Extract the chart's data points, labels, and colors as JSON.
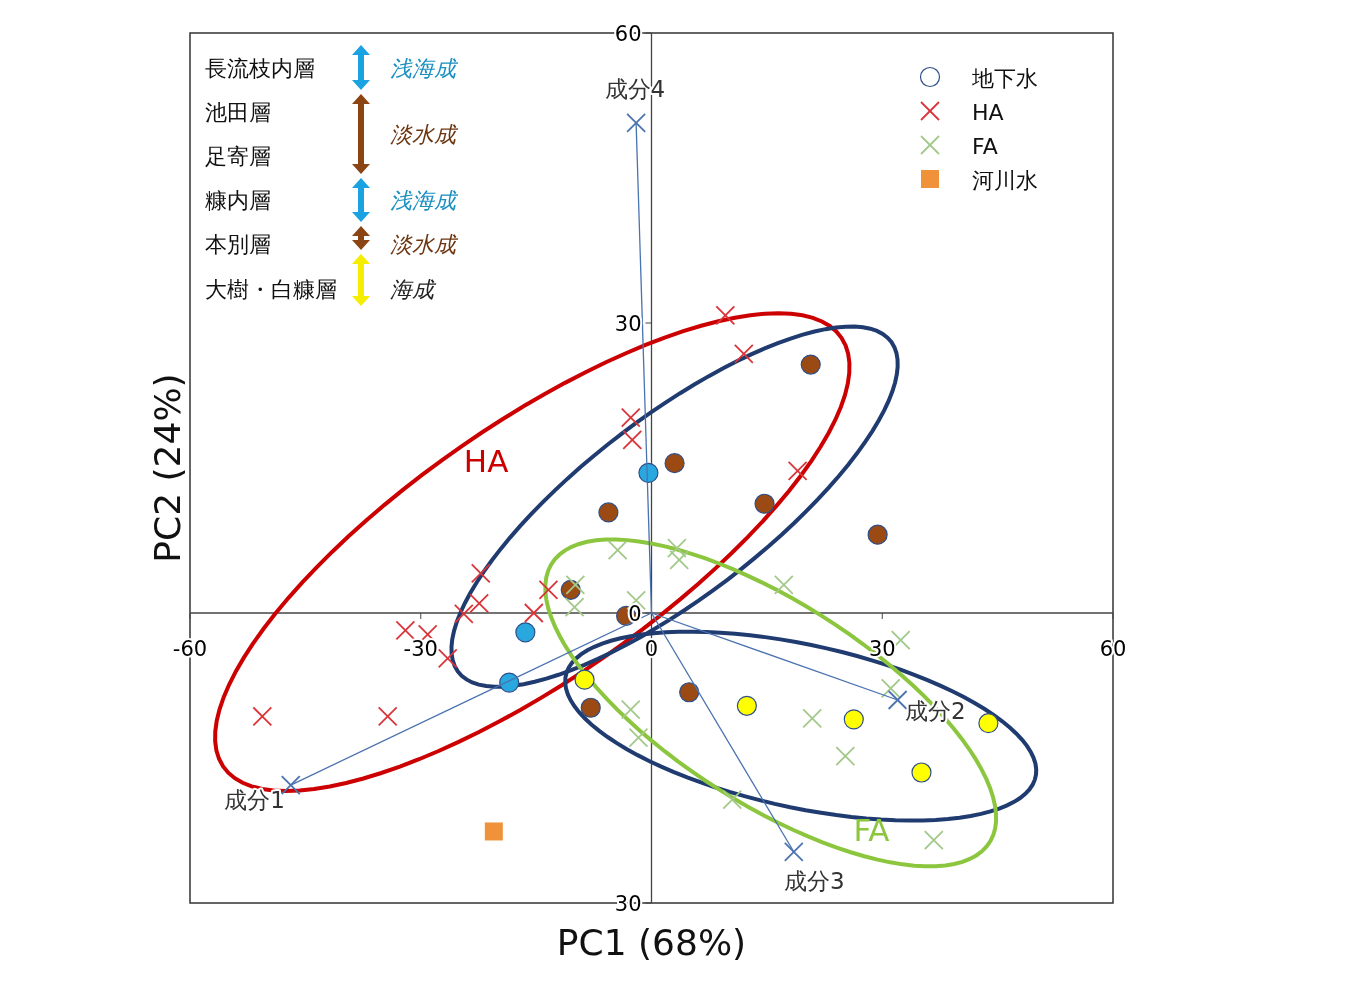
{
  "chart_data": {
    "type": "scatter",
    "xlabel": "PC1 (68%)",
    "ylabel": "PC2 (24%)",
    "xlim": [
      -60,
      60
    ],
    "ylim": [
      -30,
      60
    ],
    "xticks": [
      -60,
      -30,
      0,
      30,
      60
    ],
    "yticks": [
      60,
      30,
      0,
      {
        "value": -30,
        "label": "30"
      }
    ],
    "legend": "top right",
    "line_style": "solid",
    "series": [
      {
        "name": "地下水",
        "type": "scatter",
        "marker": "circle",
        "color": "#2f4f8a",
        "colors": [
          "#29a8e0",
          "#29a8e0",
          "#29a8e0",
          "#9a4a12",
          "#9a4a12",
          "#9a4a12",
          "#9a4a12",
          "#9a4a12",
          "#9a4a12",
          "#9a4a12",
          "#ffff00",
          "#ffff00",
          "#ffff00",
          "#ffff00",
          "#ffff00",
          "#9a4a12",
          "#9a4a12"
        ],
        "x": [
          -0.4,
          -16.4,
          -18.5,
          3.0,
          -5.6,
          14.7,
          -10.5,
          -3.3,
          4.9,
          -7.9,
          -8.7,
          12.4,
          26.3,
          35.1,
          43.8,
          20.7,
          29.4
        ],
        "values": [
          14.5,
          -2.0,
          -7.2,
          15.5,
          10.4,
          11.3,
          2.4,
          -0.3,
          -8.2,
          -9.8,
          -6.9,
          -9.6,
          -11.0,
          -16.5,
          -11.4,
          25.7,
          8.1
        ]
      },
      {
        "name": "HA",
        "type": "scatter",
        "marker": "cross",
        "color": "#d9343a",
        "x": [
          9.6,
          12.0,
          -2.7,
          -2.5,
          19.0,
          -22.2,
          -22.4,
          -24.4,
          -13.4,
          -15.3,
          -32.0,
          -29.1,
          -26.5,
          -50.6,
          -34.3
        ],
        "values": [
          30.8,
          26.8,
          20.2,
          17.9,
          14.7,
          4.1,
          1.0,
          -0.1,
          2.4,
          0,
          -1.8,
          -2.2,
          -4.7,
          -10.7,
          -10.7
        ]
      },
      {
        "name": "FA",
        "type": "scatter",
        "marker": "cross",
        "color": "#a3c98a",
        "x": [
          -4.4,
          3.3,
          3.6,
          -9.9,
          -10.0,
          -2.0,
          17.2,
          -2.7,
          -1.7,
          31.1,
          20.9,
          25.2,
          10.5,
          36.7,
          32.4
        ],
        "values": [
          6.5,
          6.7,
          5.5,
          2.9,
          0.6,
          1.3,
          2.9,
          -10.0,
          -12.9,
          -7.8,
          -10.9,
          -14.8,
          -19.3,
          -23.5,
          -2.8
        ]
      },
      {
        "name": "河川水",
        "type": "scatter",
        "marker": "square",
        "color": "#f0923a",
        "x": [
          -20.5
        ],
        "values": [
          -22.6
        ]
      },
      {
        "name": "成分1",
        "type": "line",
        "marker": "cross",
        "color": "#4a72b0",
        "x": [
          0,
          -46.9
        ],
        "values": [
          0,
          -17.8
        ]
      },
      {
        "name": "成分2",
        "type": "line",
        "marker": "cross",
        "color": "#4a72b0",
        "x": [
          0,
          32.0
        ],
        "values": [
          0,
          -9.0
        ]
      },
      {
        "name": "成分3",
        "type": "line",
        "marker": "cross",
        "color": "#4a72b0",
        "x": [
          0,
          18.5
        ],
        "values": [
          0,
          -24.7
        ]
      },
      {
        "name": "成分4",
        "type": "line",
        "marker": "cross",
        "color": "#4a72b0",
        "x": [
          0,
          -2.0
        ],
        "values": [
          0,
          50.7
        ]
      }
    ],
    "annotations": [
      "HA",
      "FA",
      "長流枝内層",
      "池田層",
      "足寄層",
      "糠内層",
      "本別層",
      "大樹・白糠層",
      "浅海成",
      "淡水成",
      "浅海成",
      "淡水成",
      "海成"
    ]
  }
}
